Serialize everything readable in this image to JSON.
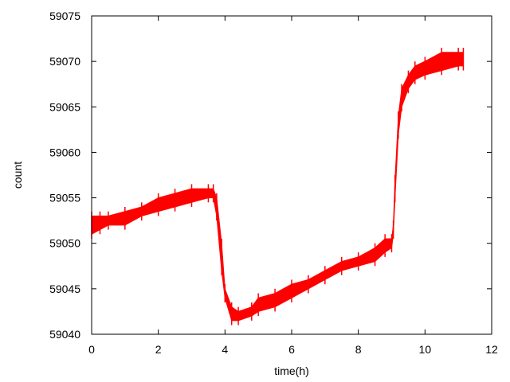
{
  "chart_data": {
    "type": "line",
    "title": "",
    "xlabel": "time(h)",
    "ylabel": "count",
    "xlim": [
      0,
      12
    ],
    "ylim": [
      59040,
      59075
    ],
    "xticks": [
      0,
      2,
      4,
      6,
      8,
      10,
      12
    ],
    "yticks": [
      59040,
      59045,
      59050,
      59055,
      59060,
      59065,
      59070,
      59075
    ],
    "grid": false,
    "legend": "none",
    "series": [
      {
        "color": "#ff0000",
        "band": true,
        "x": [
          0.0,
          0.25,
          0.5,
          1.0,
          1.5,
          2.0,
          2.5,
          3.0,
          3.5,
          3.65,
          3.75,
          3.9,
          4.0,
          4.2,
          4.4,
          4.8,
          5.0,
          5.5,
          6.0,
          6.5,
          7.0,
          7.5,
          8.0,
          8.5,
          8.8,
          9.0,
          9.05,
          9.1,
          9.2,
          9.3,
          9.5,
          9.7,
          10.0,
          10.5,
          11.0,
          11.15
        ],
        "y_low": [
          59051,
          59051.5,
          59052,
          59052,
          59053,
          59053.5,
          59054,
          59054.5,
          59055,
          59055,
          59053,
          59047,
          59044,
          59041.5,
          59041.5,
          59042,
          59042.5,
          59043,
          59044,
          59045,
          59046,
          59047,
          59047.5,
          59048,
          59049,
          59049.5,
          59051,
          59055,
          59062,
          59065,
          59067,
          59068,
          59068.5,
          59069,
          59069.5,
          59069.5
        ],
        "y_high": [
          59053,
          59053,
          59053,
          59053.5,
          59054,
          59055,
          59055.5,
          59056,
          59056,
          59056,
          59055,
          59050,
          59045,
          59043,
          59042.5,
          59043,
          59044,
          59044.5,
          59045.5,
          59046,
          59047,
          59048,
          59048.5,
          59049.5,
          59050.5,
          59050.5,
          59052,
          59057,
          59064,
          59067,
          59068.5,
          59069.5,
          59070,
          59071,
          59071,
          59071
        ]
      }
    ]
  }
}
